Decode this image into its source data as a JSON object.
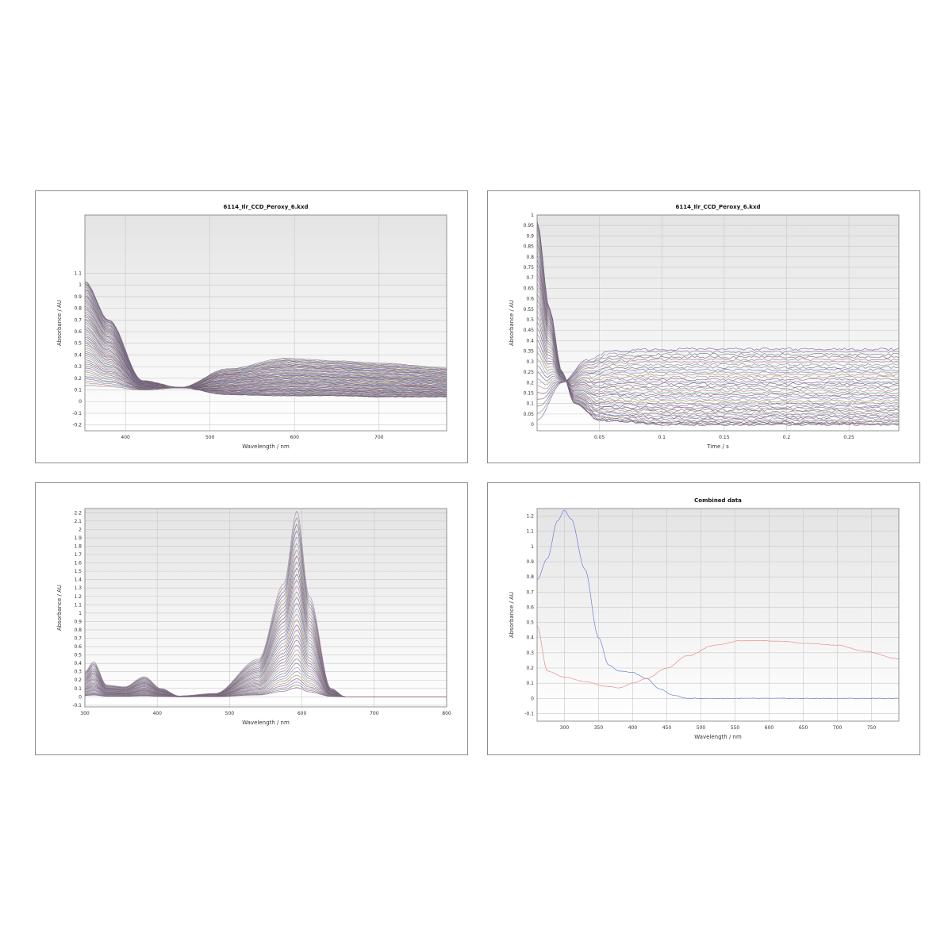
{
  "chart_data": [
    {
      "type": "line",
      "title": "6114_Ilr_CCD_Peroxy_6.kxd",
      "xlabel": "Wavelength / nm",
      "ylabel": "Absorbance / AU",
      "xlim": [
        352,
        780
      ],
      "ylim": [
        -0.25,
        1.6
      ],
      "xticks": [
        400,
        500,
        600,
        700
      ],
      "yticks": [
        -0.2,
        -0.1,
        0,
        0.1,
        0.2,
        0.3,
        0.4,
        0.5,
        0.6,
        0.7,
        0.8,
        0.9,
        1,
        1.1
      ],
      "grid": true,
      "series_count": 60,
      "series": [
        {
          "name": "",
          "x": [
            352,
            380,
            420,
            465,
            520,
            590,
            650,
            700,
            780
          ],
          "y": [
            1.03,
            0.7,
            0.18,
            0.12,
            0.06,
            0.05,
            0.05,
            0.04,
            0.04
          ]
        },
        {
          "name": "",
          "x": [
            352,
            380,
            420,
            465,
            520,
            590,
            650,
            700,
            780
          ],
          "y": [
            0.14,
            0.13,
            0.1,
            0.12,
            0.28,
            0.37,
            0.35,
            0.33,
            0.29
          ]
        }
      ]
    },
    {
      "type": "line",
      "title": "6114_Ilr_CCD_Peroxy_6.kxd",
      "xlabel": "Time / s",
      "ylabel": "Absorbance / AU",
      "xlim": [
        0,
        0.29
      ],
      "ylim": [
        -0.03,
        1.0
      ],
      "xticks": [
        0.05,
        0.1,
        0.15,
        0.2,
        0.25
      ],
      "yticks": [
        0,
        0.05,
        0.1,
        0.15,
        0.2,
        0.25,
        0.3,
        0.35,
        0.4,
        0.45,
        0.5,
        0.55,
        0.6,
        0.65,
        0.7,
        0.75,
        0.8,
        0.85,
        0.9,
        0.95,
        1
      ],
      "grid": true,
      "series_count": 40,
      "series": [
        {
          "name": "",
          "x": [
            0,
            0.01,
            0.02,
            0.03,
            0.05,
            0.1,
            0.29
          ],
          "y": [
            0.97,
            0.55,
            0.25,
            0.1,
            0.02,
            0.0,
            0.0
          ]
        },
        {
          "name": "",
          "x": [
            0,
            0.02,
            0.04,
            0.06,
            0.1,
            0.29
          ],
          "y": [
            0.02,
            0.2,
            0.31,
            0.35,
            0.36,
            0.36
          ]
        }
      ]
    },
    {
      "type": "line",
      "title": "",
      "xlabel": "Wavelength / nm",
      "ylabel": "Absorbance / AU",
      "xlim": [
        300,
        800
      ],
      "ylim": [
        -0.12,
        2.25
      ],
      "xticks": [
        300,
        400,
        500,
        600,
        700,
        800
      ],
      "yticks": [
        -0.1,
        0,
        0.1,
        0.2,
        0.3,
        0.4,
        0.5,
        0.6,
        0.7,
        0.8,
        0.9,
        1,
        1.1,
        1.2,
        1.3,
        1.4,
        1.5,
        1.6,
        1.7,
        1.8,
        1.9,
        2,
        2.1,
        2.2
      ],
      "grid": true,
      "series_count": 35,
      "series": [
        {
          "name": "",
          "x": [
            300,
            312,
            330,
            355,
            382,
            405,
            430,
            480,
            540,
            575,
            593,
            610,
            640,
            660,
            800
          ],
          "y": [
            0.3,
            0.42,
            0.14,
            0.12,
            0.24,
            0.1,
            0.01,
            0.04,
            0.45,
            1.35,
            2.22,
            1.2,
            0.1,
            0.0,
            0.0
          ]
        }
      ]
    },
    {
      "type": "line",
      "title": "Combined data",
      "xlabel": "Wavelength / nm",
      "ylabel": "Absorbance / AU",
      "xlim": [
        260,
        790
      ],
      "ylim": [
        -0.15,
        1.25
      ],
      "xticks": [
        300,
        350,
        400,
        450,
        500,
        550,
        600,
        650,
        700,
        750
      ],
      "yticks": [
        -0.1,
        0,
        0.1,
        0.2,
        0.3,
        0.4,
        0.5,
        0.6,
        0.7,
        0.8,
        0.9,
        1,
        1.1,
        1.2
      ],
      "grid": true,
      "series": [
        {
          "name": "",
          "color": "#6f7fd6",
          "x": [
            260,
            275,
            290,
            300,
            310,
            330,
            350,
            365,
            380,
            400,
            420,
            440,
            460,
            480,
            500,
            550,
            600,
            700,
            790
          ],
          "y": [
            0.78,
            0.92,
            1.17,
            1.24,
            1.18,
            0.85,
            0.4,
            0.22,
            0.18,
            0.17,
            0.13,
            0.06,
            0.02,
            0.0,
            0.0,
            0.0,
            0.0,
            0.0,
            0.0
          ]
        },
        {
          "name": "",
          "color": "#e88f8f",
          "x": [
            260,
            275,
            300,
            330,
            360,
            380,
            400,
            420,
            450,
            480,
            520,
            560,
            590,
            620,
            660,
            700,
            740,
            790
          ],
          "y": [
            0.48,
            0.18,
            0.14,
            0.11,
            0.08,
            0.07,
            0.1,
            0.13,
            0.2,
            0.28,
            0.35,
            0.38,
            0.38,
            0.375,
            0.36,
            0.35,
            0.31,
            0.26
          ]
        }
      ]
    }
  ]
}
